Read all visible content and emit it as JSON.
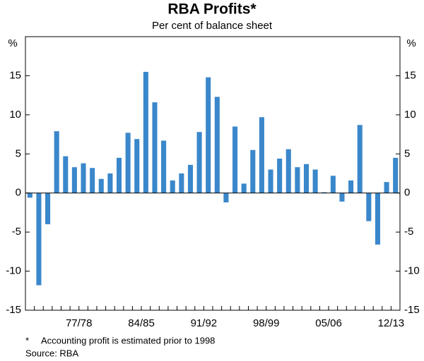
{
  "chart_data": {
    "type": "bar",
    "title": "RBA Profits*",
    "subtitle": "Per cent of balance sheet",
    "y_label": "%",
    "y2_label": "%",
    "categories": [
      null,
      null,
      null,
      null,
      null,
      null,
      "77/78",
      null,
      null,
      null,
      null,
      null,
      null,
      "84/85",
      null,
      null,
      null,
      null,
      null,
      null,
      "91/92",
      null,
      null,
      null,
      null,
      null,
      null,
      "98/99",
      null,
      null,
      null,
      null,
      null,
      null,
      "05/06",
      null,
      null,
      null,
      null,
      null,
      null,
      "12/13"
    ],
    "values": [
      -0.6,
      -11.8,
      -4.0,
      7.9,
      4.7,
      3.3,
      3.8,
      3.2,
      1.8,
      2.5,
      4.5,
      7.7,
      6.9,
      15.5,
      11.6,
      6.7,
      1.6,
      2.5,
      3.6,
      7.8,
      14.8,
      12.3,
      -1.2,
      8.5,
      1.2,
      5.5,
      9.7,
      3.0,
      4.4,
      5.6,
      3.3,
      3.7,
      3.0,
      0.1,
      2.2,
      -1.1,
      1.6,
      8.7,
      -3.6,
      -6.6,
      1.4,
      4.5
    ],
    "color": "#3a87cb",
    "ylim": [
      -15,
      20
    ],
    "yticks": [
      -15,
      -10,
      -5,
      0,
      5,
      10,
      15
    ],
    "y2lim": [
      -15,
      20
    ],
    "y2ticks": [
      -15,
      -10,
      -5,
      0,
      5,
      10,
      15
    ],
    "grid": false,
    "notes": [
      "*",
      "Accounting profit is estimated prior to 1998"
    ],
    "source": "Source: RBA"
  }
}
